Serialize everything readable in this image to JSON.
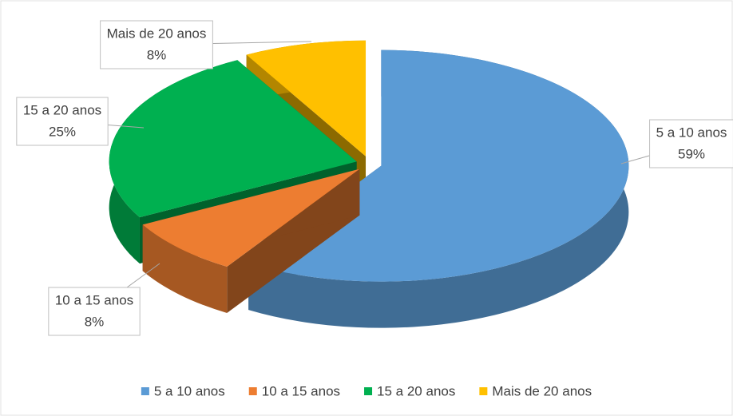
{
  "chart_data": {
    "type": "pie",
    "categories": [
      "5 a 10 anos",
      "10 a 15 anos",
      "15 a 20 anos",
      "Mais de 20 anos"
    ],
    "values": [
      59,
      8,
      25,
      8
    ],
    "value_labels": [
      "59%",
      "8%",
      "25%",
      "8%"
    ],
    "colors": [
      "#5b9bd5",
      "#ed7d31",
      "#00b050",
      "#ffc000"
    ],
    "legend": "bottom"
  }
}
